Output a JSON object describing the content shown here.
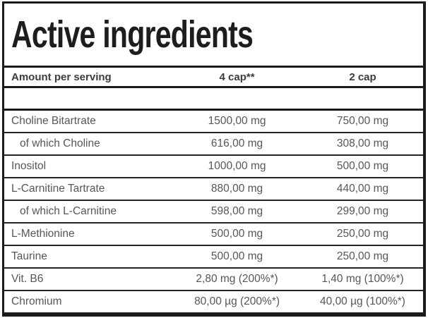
{
  "title": "Active ingredients",
  "table": {
    "headers": [
      "Amount per serving",
      "4 cap**",
      "2 cap"
    ],
    "rows": [
      {
        "name": "Choline Bitartrate",
        "per_4cap": "1500,00 mg",
        "per_2cap": "750,00 mg"
      },
      {
        "name": "of which Choline",
        "per_4cap": "616,00 mg",
        "per_2cap": "308,00 mg"
      },
      {
        "name": "Inositol",
        "per_4cap": "1000,00 mg",
        "per_2cap": "500,00 mg"
      },
      {
        "name": "L-Carnitine Tartrate",
        "per_4cap": "880,00 mg",
        "per_2cap": "440,00 mg"
      },
      {
        "name": "of which L-Carnitine",
        "per_4cap": "598,00 mg",
        "per_2cap": "299,00 mg"
      },
      {
        "name": "L-Methionine",
        "per_4cap": "500,00 mg",
        "per_2cap": "250,00 mg"
      },
      {
        "name": "Taurine",
        "per_4cap": "500,00 mg",
        "per_2cap": "250,00 mg"
      },
      {
        "name": "Vit. B6",
        "per_4cap": "2,80 mg (200%*)",
        "per_2cap": "1,40 mg (100%*)"
      },
      {
        "name": "Chromium",
        "per_4cap": "80,00 µg (200%*)",
        "per_2cap": "40,00 µg (100%*)"
      }
    ]
  },
  "colors": {
    "border": "#1b1b19",
    "title_text": "#1d1d1b",
    "header_text": "#3d3d3c",
    "row_text": "#575756",
    "background": "#ffffff"
  }
}
